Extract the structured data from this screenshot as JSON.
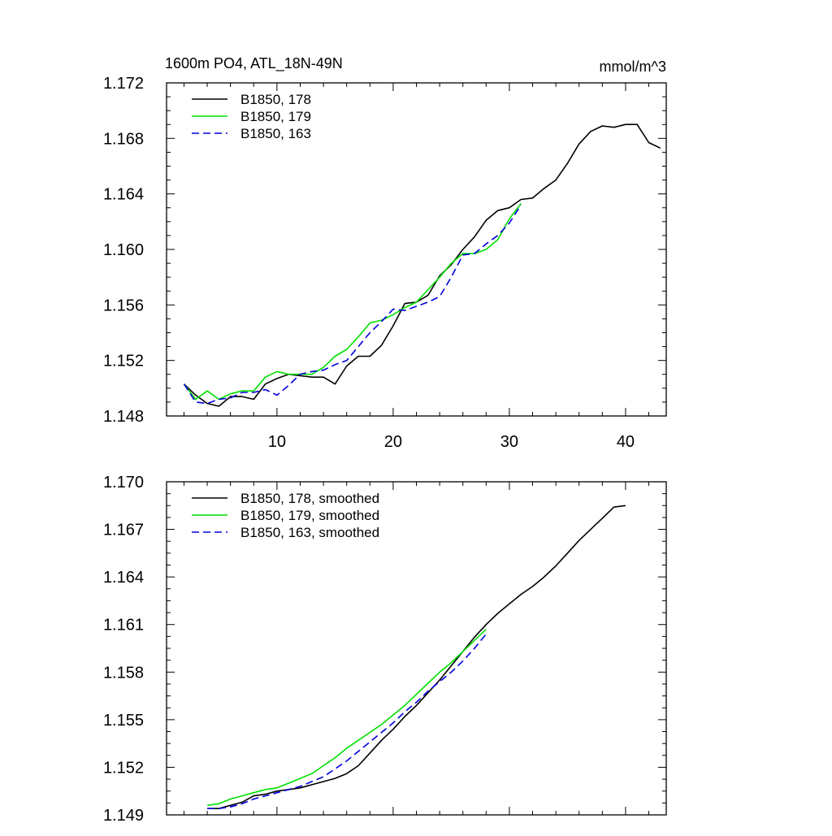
{
  "header": {
    "title": "1600m PO4, ATL_18N-49N",
    "units": "mmol/m^3"
  },
  "colors": {
    "series_178": "#000000",
    "series_179": "#00e000",
    "series_163": "#0000dd",
    "axis": "#000000",
    "background": "#ffffff"
  },
  "chart_data": [
    {
      "type": "line",
      "title": "1600m PO4, ATL_18N-49N",
      "units": "mmol/m^3",
      "xlabel": "",
      "ylabel": "",
      "xlim": [
        0.5,
        43.5
      ],
      "ylim": [
        1.148,
        1.172
      ],
      "xticks": [
        10,
        20,
        30,
        40
      ],
      "xtick_labels": [
        "10",
        "20",
        "30",
        "40"
      ],
      "yticks": [
        1.148,
        1.152,
        1.156,
        1.16,
        1.164,
        1.168,
        1.172
      ],
      "ytick_labels": [
        "1.148",
        "1.152",
        "1.156",
        "1.160",
        "1.164",
        "1.168",
        "1.172"
      ],
      "grid": false,
      "legend_position": "top-left",
      "series": [
        {
          "name": "B1850, 178",
          "color": "#000000",
          "dash": "solid",
          "x": [
            2,
            3,
            4,
            5,
            6,
            7,
            8,
            9,
            10,
            11,
            12,
            13,
            14,
            15,
            16,
            17,
            18,
            19,
            20,
            21,
            22,
            23,
            24,
            25,
            26,
            27,
            28,
            29,
            30,
            31,
            32,
            33,
            34,
            35,
            36,
            37,
            38,
            39,
            40,
            41,
            42,
            43
          ],
          "y": [
            1.1503,
            1.1495,
            1.1489,
            1.1487,
            1.1494,
            1.1494,
            1.1492,
            1.1503,
            1.1507,
            1.151,
            1.1509,
            1.1508,
            1.1508,
            1.1503,
            1.1516,
            1.1523,
            1.1523,
            1.1531,
            1.1545,
            1.1561,
            1.1562,
            1.1567,
            1.1581,
            1.1589,
            1.16,
            1.1609,
            1.1621,
            1.1628,
            1.163,
            1.1636,
            1.1637,
            1.1644,
            1.165,
            1.1662,
            1.1676,
            1.1685,
            1.1689,
            1.1688,
            1.169,
            1.169,
            1.1677,
            1.1673
          ]
        },
        {
          "name": "B1850, 179",
          "color": "#00e000",
          "dash": "solid",
          "x": [
            2,
            3,
            4,
            5,
            6,
            7,
            8,
            9,
            10,
            11,
            12,
            13,
            14,
            15,
            16,
            17,
            18,
            19,
            20,
            21,
            22,
            23,
            24,
            25,
            26,
            27,
            28,
            29,
            30,
            31
          ],
          "y": [
            1.1503,
            1.1492,
            1.1498,
            1.1492,
            1.1496,
            1.1498,
            1.1498,
            1.1508,
            1.1512,
            1.151,
            1.151,
            1.151,
            1.1515,
            1.1523,
            1.1528,
            1.1537,
            1.1547,
            1.1549,
            1.1553,
            1.1558,
            1.1562,
            1.1571,
            1.158,
            1.159,
            1.1597,
            1.1597,
            1.16,
            1.1607,
            1.1622,
            1.1633
          ]
        },
        {
          "name": "B1850, 163",
          "color": "#0000dd",
          "dash": "dashed",
          "x": [
            2,
            3,
            4,
            5,
            6,
            7,
            8,
            9,
            10,
            11,
            12,
            13,
            14,
            15,
            16,
            17,
            18,
            19,
            20,
            21,
            22,
            23,
            24,
            25,
            26,
            27,
            28,
            29,
            30,
            31
          ],
          "y": [
            1.1503,
            1.149,
            1.1489,
            1.1492,
            1.1493,
            1.1497,
            1.1497,
            1.1499,
            1.1495,
            1.1502,
            1.151,
            1.1512,
            1.1513,
            1.1517,
            1.152,
            1.153,
            1.154,
            1.1548,
            1.1557,
            1.1556,
            1.1559,
            1.1562,
            1.1566,
            1.158,
            1.1596,
            1.1597,
            1.1604,
            1.161,
            1.1619,
            1.1632
          ]
        }
      ]
    },
    {
      "type": "line",
      "title": "",
      "xlabel": "",
      "ylabel": "",
      "xlim": [
        0.5,
        43.5
      ],
      "ylim": [
        1.149,
        1.17
      ],
      "xticks": [
        10,
        20,
        30,
        40
      ],
      "xtick_labels": [],
      "yticks": [
        1.149,
        1.152,
        1.155,
        1.158,
        1.161,
        1.164,
        1.167,
        1.17
      ],
      "ytick_labels": [
        "1.149",
        "1.152",
        "1.155",
        "1.158",
        "1.161",
        "1.164",
        "1.167",
        "1.170"
      ],
      "grid": false,
      "legend_position": "top-left",
      "series": [
        {
          "name": "B1850, 178, smoothed",
          "color": "#000000",
          "dash": "solid",
          "x": [
            4,
            5,
            6,
            7,
            8,
            9,
            10,
            11,
            12,
            13,
            14,
            15,
            16,
            17,
            18,
            19,
            20,
            21,
            22,
            23,
            24,
            25,
            26,
            27,
            28,
            29,
            30,
            31,
            32,
            33,
            34,
            35,
            36,
            37,
            38,
            39,
            40
          ],
          "y": [
            1.1494,
            1.1494,
            1.1496,
            1.1498,
            1.1502,
            1.1503,
            1.1505,
            1.1506,
            1.1507,
            1.1509,
            1.1511,
            1.1513,
            1.1516,
            1.1521,
            1.1529,
            1.1537,
            1.1544,
            1.1552,
            1.1559,
            1.1567,
            1.1575,
            1.1584,
            1.1593,
            1.1602,
            1.161,
            1.1617,
            1.1623,
            1.1629,
            1.1634,
            1.164,
            1.1647,
            1.1655,
            1.1663,
            1.167,
            1.1677,
            1.1684,
            1.1685
          ]
        },
        {
          "name": "B1850, 179, smoothed",
          "color": "#00e000",
          "dash": "solid",
          "x": [
            4,
            5,
            6,
            7,
            8,
            9,
            10,
            11,
            12,
            13,
            14,
            15,
            16,
            17,
            18,
            19,
            20,
            21,
            22,
            23,
            24,
            25,
            26,
            27,
            28
          ],
          "y": [
            1.1496,
            1.1497,
            1.15,
            1.1502,
            1.1504,
            1.1506,
            1.1507,
            1.151,
            1.1513,
            1.1516,
            1.1521,
            1.1526,
            1.1532,
            1.1537,
            1.1542,
            1.1547,
            1.1553,
            1.1559,
            1.1566,
            1.1573,
            1.158,
            1.1586,
            1.1593,
            1.16,
            1.1607
          ]
        },
        {
          "name": "B1850, 163, smoothed",
          "color": "#0000dd",
          "dash": "dashed",
          "x": [
            4,
            5,
            6,
            7,
            8,
            9,
            10,
            11,
            12,
            13,
            14,
            15,
            16,
            17,
            18,
            19,
            20,
            21,
            22,
            23,
            24,
            25,
            26,
            27,
            28
          ],
          "y": [
            1.1494,
            1.1494,
            1.1495,
            1.1497,
            1.15,
            1.1502,
            1.1504,
            1.1506,
            1.1508,
            1.1511,
            1.1514,
            1.1519,
            1.1524,
            1.153,
            1.1536,
            1.1542,
            1.1548,
            1.1555,
            1.1561,
            1.1568,
            1.1574,
            1.158,
            1.1587,
            1.1595,
            1.1604
          ]
        }
      ]
    }
  ]
}
